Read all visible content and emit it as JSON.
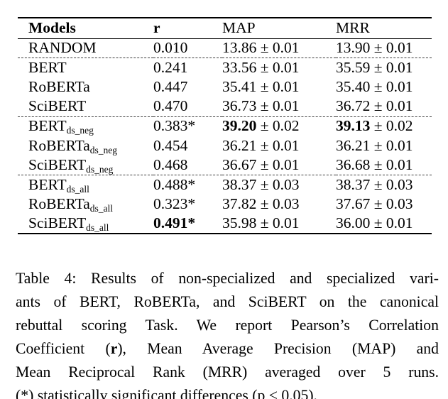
{
  "page": {
    "background_color": "#ffffff",
    "text_color": "#000000"
  },
  "table": {
    "columns": {
      "models": "Models",
      "r": "r",
      "map": "MAP",
      "mrr": "MRR"
    },
    "rows": [
      {
        "model": "RANDOM",
        "subscript": "",
        "r": "0.010",
        "map_value": "13.86",
        "map_err": "± 0.01",
        "mrr_value": "13.90",
        "mrr_err": "± 0.01"
      },
      {
        "model": "BERT",
        "subscript": "",
        "r": "0.241",
        "map_value": "33.56",
        "map_err": "± 0.01",
        "mrr_value": "35.59",
        "mrr_err": "± 0.01"
      },
      {
        "model": "RoBERTa",
        "subscript": "",
        "r": "0.447",
        "map_value": "35.41",
        "map_err": "± 0.01",
        "mrr_value": "35.40",
        "mrr_err": "± 0.01"
      },
      {
        "model": "SciBERT",
        "subscript": "",
        "r": "0.470",
        "map_value": "36.73",
        "map_err": "± 0.01",
        "mrr_value": "36.72",
        "mrr_err": "± 0.01"
      },
      {
        "model": "BERT",
        "subscript": "ds_neg",
        "r": "0.383*",
        "map_value": "39.20",
        "map_err": "± 0.02",
        "mrr_value": "39.13",
        "mrr_err": "± 0.02"
      },
      {
        "model": "RoBERTa",
        "subscript": "ds_neg",
        "r": "0.454",
        "map_value": "36.21",
        "map_err": "± 0.01",
        "mrr_value": "36.21",
        "mrr_err": "± 0.01"
      },
      {
        "model": "SciBERT",
        "subscript": "ds_neg",
        "r": "0.468",
        "map_value": "36.67",
        "map_err": "± 0.01",
        "mrr_value": "36.68",
        "mrr_err": "± 0.01"
      },
      {
        "model": "BERT",
        "subscript": "ds_all",
        "r": "0.488*",
        "map_value": "38.37",
        "map_err": "± 0.03",
        "mrr_value": "38.37",
        "mrr_err": "± 0.03"
      },
      {
        "model": "RoBERTa",
        "subscript": "ds_all",
        "r": "0.323*",
        "map_value": "37.82",
        "map_err": "± 0.03",
        "mrr_value": "37.67",
        "mrr_err": "± 0.03"
      },
      {
        "model": "SciBERT",
        "subscript": "ds_all",
        "r": "0.491*",
        "map_value": "35.98",
        "map_err": "± 0.01",
        "mrr_value": "36.00",
        "mrr_err": "± 0.01"
      }
    ]
  },
  "caption": {
    "lines": [
      {
        "text": "Table 4: Results of non-specialized and specialized vari-"
      },
      {
        "text": "ants of BERT, RoBERTa, and SciBERT on the canonical"
      },
      {
        "text": "rebuttal scoring Task. We report Pearson’s Correlation"
      },
      {
        "pre": "Coefficient (",
        "bold": "r",
        "post": "), Mean Average Precision (MAP) and"
      },
      {
        "text": "Mean Reciprocal Rank (MRR) averaged over 5 runs."
      },
      {
        "text": "(*) statistically significant differences (p < 0.05)."
      }
    ]
  }
}
